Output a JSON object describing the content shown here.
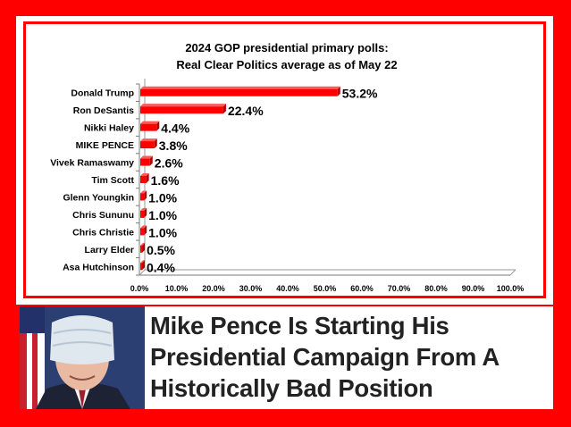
{
  "chart_data": {
    "type": "bar",
    "orientation": "horizontal",
    "title_lines": [
      "2024 GOP presidential primary polls:",
      "Real Clear Politics average as of May 22"
    ],
    "categories": [
      "Donald Trump",
      "Ron DeSantis",
      "Nikki Haley",
      "MIKE PENCE",
      "Vivek Ramaswamy",
      "Tim Scott",
      "Glenn Youngkin",
      "Chris Sununu",
      "Chris Christie",
      "Larry Elder",
      "Asa Hutchinson"
    ],
    "values": [
      53.2,
      22.4,
      4.4,
      3.8,
      2.6,
      1.6,
      1.0,
      1.0,
      1.0,
      0.5,
      0.4
    ],
    "value_labels": [
      "53.2%",
      "22.4%",
      "4.4%",
      "3.8%",
      "2.6%",
      "1.6%",
      "1.0%",
      "1.0%",
      "1.0%",
      "0.5%",
      "0.4%"
    ],
    "x_ticks": [
      "0.0%",
      "10.0%",
      "20.0%",
      "30.0%",
      "40.0%",
      "50.0%",
      "60.0%",
      "70.0%",
      "80.0%",
      "90.0%",
      "100.0%"
    ],
    "xlim": [
      0,
      100
    ],
    "grid": false,
    "bar_color": "#ff0000"
  },
  "article": {
    "headline": "Mike Pence Is Starting His Presidential Campaign From A Historically Bad Position"
  },
  "colors": {
    "background": "#ff0000",
    "panel": "#ffffff",
    "headline_text": "#222222"
  }
}
